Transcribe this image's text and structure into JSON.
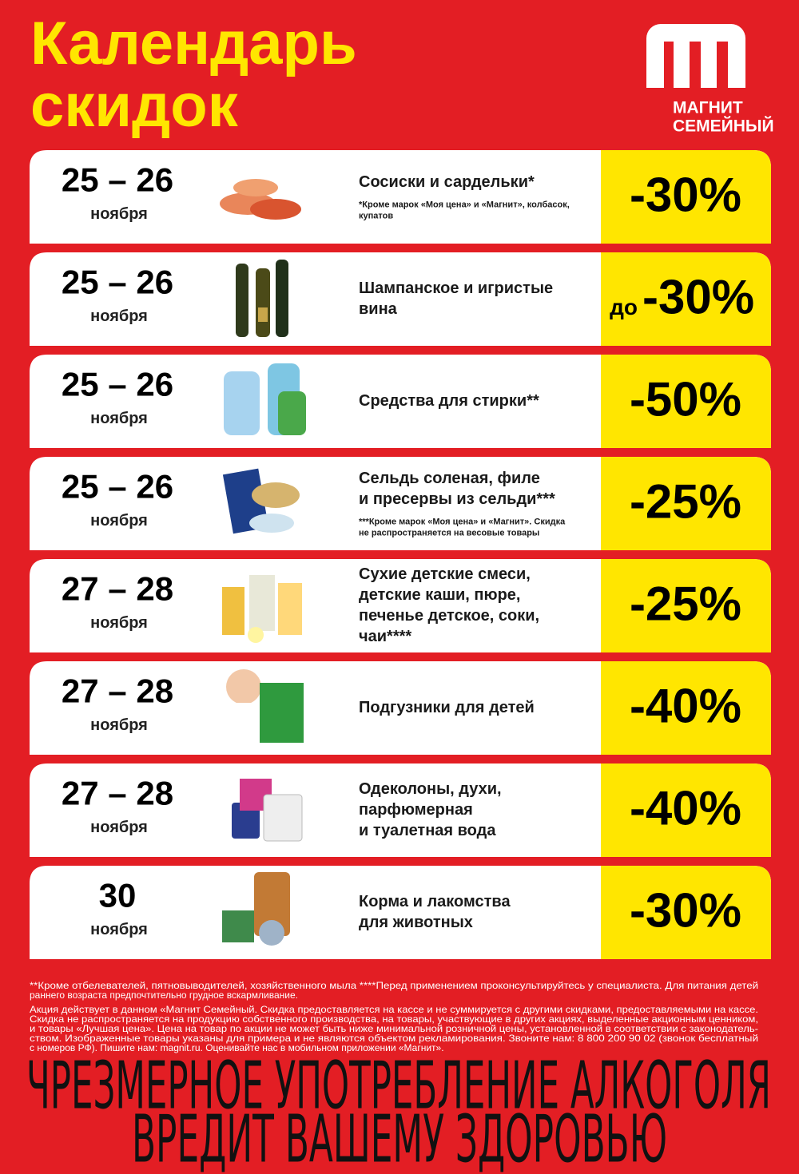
{
  "header": {
    "title_line1": "Календарь",
    "title_line2": "скидок"
  },
  "logo": {
    "line1": "МАГНИТ",
    "line2": "СЕМЕЙНЫЙ"
  },
  "offers": [
    {
      "dates": "25 – 26",
      "month": "ноября",
      "product": [
        "Сосиски и сардельки*"
      ],
      "note": [
        "*Кроме марок «Моя цена» и «Магнит», колбасок,",
        "купатов"
      ],
      "discount": "-30%"
    },
    {
      "dates": "25 – 26",
      "month": "ноября",
      "product": [
        "Шампанское и игристые",
        "вина"
      ],
      "discount_prefix": "до",
      "discount": "-30%"
    },
    {
      "dates": "25 – 26",
      "month": "ноября",
      "product": [
        "Средства для стирки**"
      ],
      "discount": "-50%"
    },
    {
      "dates": "25 – 26",
      "month": "ноября",
      "product": [
        "Сельдь соленая, филе",
        "и пресервы из сельди***"
      ],
      "note": [
        "***Кроме марок «Моя цена» и «Магнит». Скидка",
        "не распространяется на весовые товары"
      ],
      "discount": "-25%"
    },
    {
      "dates": "27 – 28",
      "month": "ноября",
      "product": [
        "Сухие детские смеси,",
        "детские каши, пюре,",
        "печенье детское, соки,",
        "чаи****"
      ],
      "discount": "-25%"
    },
    {
      "dates": "27 – 28",
      "month": "ноября",
      "product": [
        "Подгузники для детей"
      ],
      "discount": "-40%"
    },
    {
      "dates": "27 – 28",
      "month": "ноября",
      "product": [
        "Одеколоны, духи,",
        "парфюмерная",
        "и туалетная вода"
      ],
      "discount": "-40%"
    },
    {
      "dates": "30",
      "month": "ноября",
      "product": [
        "Корма и лакомства",
        "для животных"
      ],
      "discount": "-30%"
    }
  ],
  "footer": {
    "notes": [
      "**Кроме отбелевателей, пятновыводителей, хозяйственного мыла ****Перед применением проконсультируйтесь у специалиста. Для питания детей",
      "раннего возраста предпочтительно грудное вскармливание.",
      "Акция действует в данном «Магнит Семейный. Скидка предоставляется на кассе и не суммируется с другими скидками, предоставляемыми на кассе.",
      "Скидка не распространяется на продукцию собственного производства, на товары, участвующие в других акциях, выделенные акционным ценником,",
      "и товары «Лучшая цена». Цена на товар по акции не может быть ниже минимальной розничной цены, установленной в соответствии с законодатель-",
      "ством. Изображенные товары указаны для примера и не являются объектом рекламирования. Звоните нам: 8 800 200 90 02 (звонок бесплатный",
      "с номеров РФ). Пишите нам: magnit.ru. Оценивайте нас в мобильном приложении «Магнит»."
    ],
    "warning": [
      "ЧРЕЗМЕРНОЕ УПОТРЕБЛЕНИЕ АЛКОГОЛЯ",
      "ВРЕДИТ ВАШЕМУ ЗДОРОВЬЮ"
    ]
  }
}
